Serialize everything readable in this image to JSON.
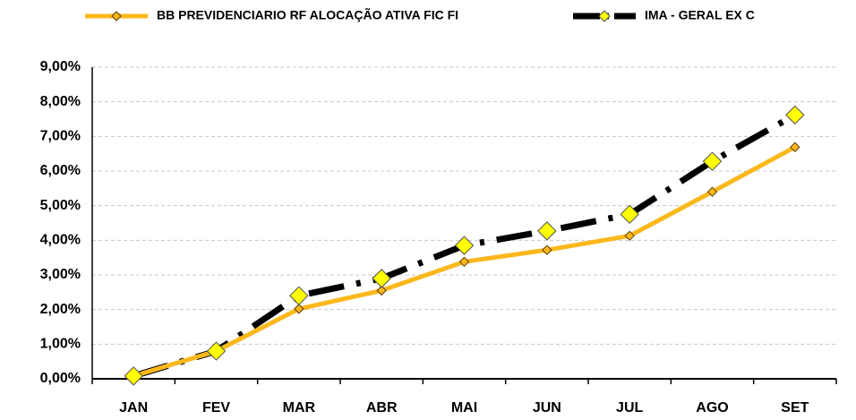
{
  "chart_data": {
    "type": "line",
    "categories": [
      "JAN",
      "FEV",
      "MAR",
      "ABR",
      "MAI",
      "JUN",
      "JUL",
      "AGO",
      "SET"
    ],
    "series": [
      {
        "name": "BB PREVIDENCIARIO RF ALOCAÇÃO ATIVA FIC FI",
        "color": "#fbb81c",
        "values": [
          0.08,
          0.8,
          2.02,
          2.55,
          3.38,
          3.72,
          4.13,
          5.4,
          6.69
        ]
      },
      {
        "name": "IMA - GERAL EX C",
        "color": "#000000",
        "values": [
          0.08,
          0.8,
          2.4,
          2.9,
          3.85,
          4.27,
          4.75,
          6.28,
          7.62
        ]
      }
    ],
    "ylim": [
      0,
      9
    ],
    "yticks": [
      {
        "value": 0,
        "label": "0,00%"
      },
      {
        "value": 1,
        "label": "1,00%"
      },
      {
        "value": 2,
        "label": "2,00%"
      },
      {
        "value": 3,
        "label": "3,00%"
      },
      {
        "value": 4,
        "label": "4,00%"
      },
      {
        "value": 5,
        "label": "5,00%"
      },
      {
        "value": 6,
        "label": "6,00%"
      },
      {
        "value": 7,
        "label": "7,00%"
      },
      {
        "value": 8,
        "label": "8,00%"
      },
      {
        "value": 9,
        "label": "9,00%"
      }
    ],
    "grid": true,
    "legend": "top"
  }
}
